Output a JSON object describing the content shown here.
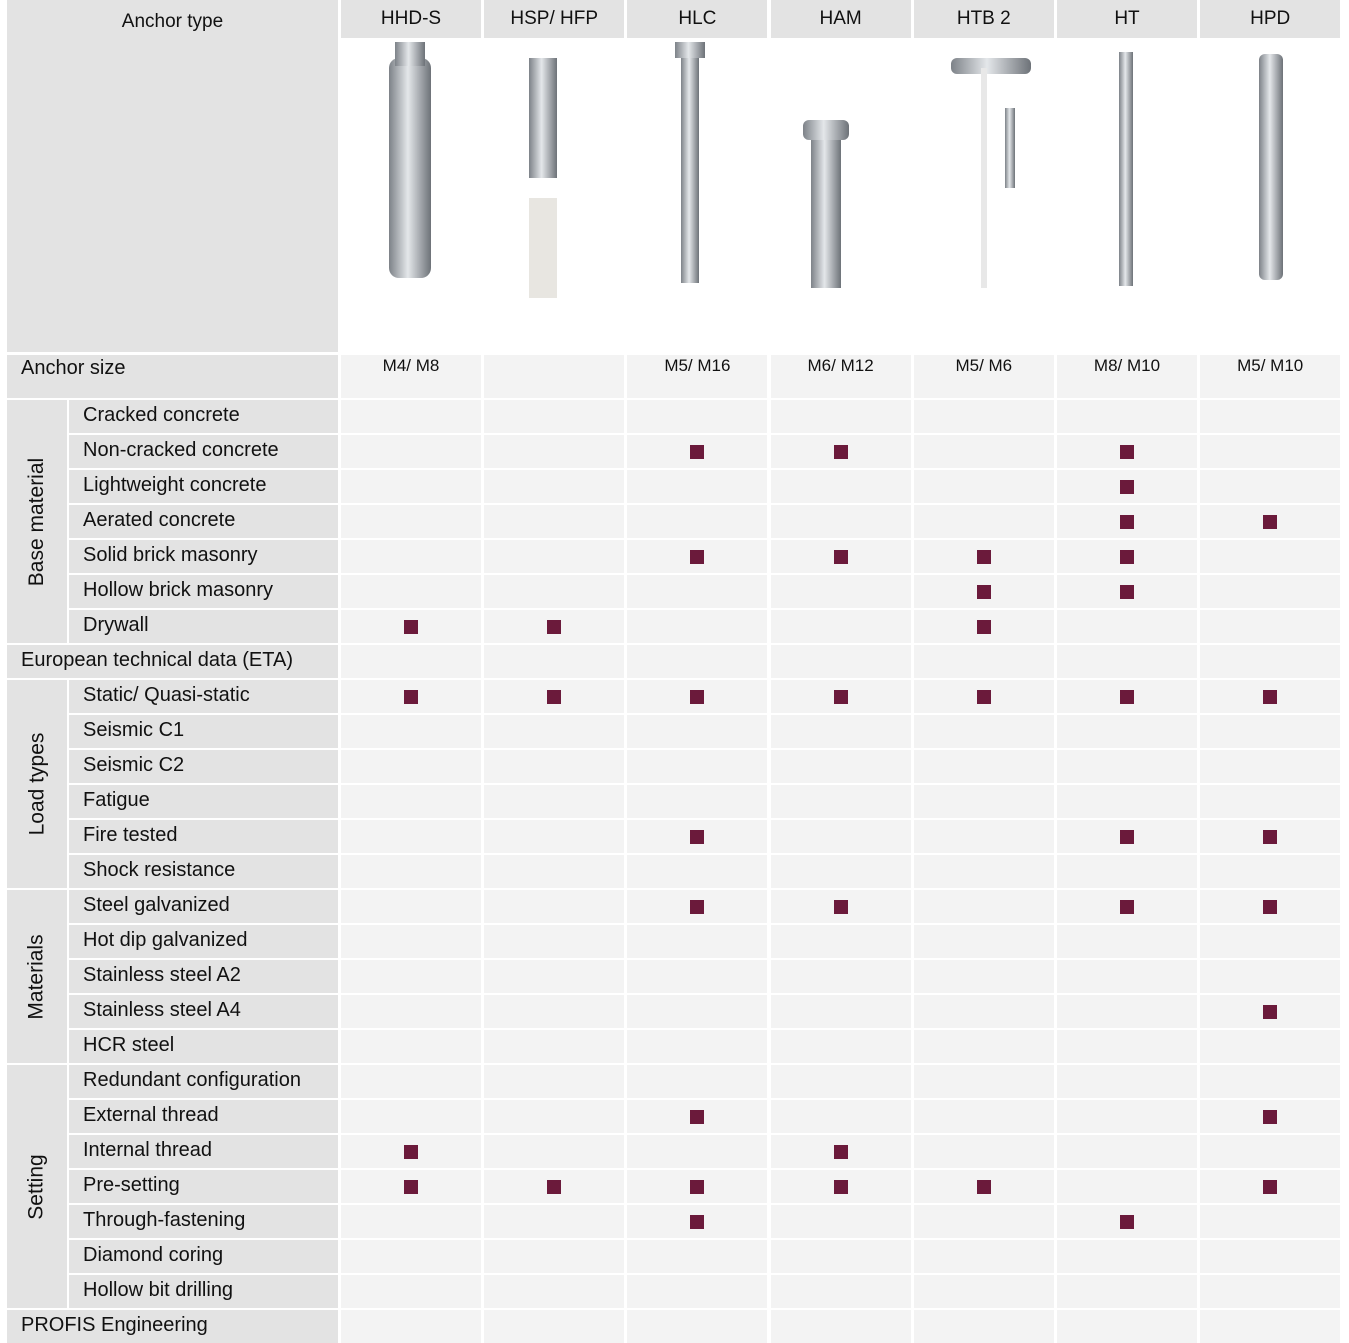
{
  "header": {
    "corner": "Anchor type",
    "size_label": "Anchor size"
  },
  "columns": [
    "HHD-S",
    "HSP/ HFP",
    "HLC",
    "HAM",
    "HTB 2",
    "HT",
    "HPD"
  ],
  "sizes": [
    "M4/ M8",
    null,
    "M5/ M16",
    "M6/ M12",
    "M5/ M6",
    "M8/ M10",
    "M5/ M10"
  ],
  "sections": [
    {
      "group": "Base material",
      "rows": [
        {
          "label": "Cracked concrete",
          "marks": [
            0,
            0,
            0,
            0,
            0,
            0,
            0
          ]
        },
        {
          "label": "Non-cracked concrete",
          "marks": [
            0,
            0,
            1,
            1,
            0,
            1,
            0
          ]
        },
        {
          "label": "Lightweight concrete",
          "marks": [
            0,
            0,
            0,
            0,
            0,
            1,
            0
          ]
        },
        {
          "label": "Aerated concrete",
          "marks": [
            0,
            0,
            0,
            0,
            0,
            1,
            1
          ]
        },
        {
          "label": "Solid brick masonry",
          "marks": [
            0,
            0,
            1,
            1,
            1,
            1,
            0
          ]
        },
        {
          "label": "Hollow brick masonry",
          "marks": [
            0,
            0,
            0,
            0,
            1,
            1,
            0
          ]
        },
        {
          "label": "Drywall",
          "marks": [
            1,
            1,
            0,
            0,
            1,
            0,
            0
          ]
        }
      ]
    },
    {
      "label": "European technical data (ETA)",
      "marks": [
        0,
        0,
        0,
        0,
        0,
        0,
        0
      ]
    },
    {
      "group": "Load types",
      "rows": [
        {
          "label": "Static/ Quasi-static",
          "marks": [
            1,
            1,
            1,
            1,
            1,
            1,
            1
          ]
        },
        {
          "label": "Seismic C1",
          "marks": [
            0,
            0,
            0,
            0,
            0,
            0,
            0
          ]
        },
        {
          "label": "Seismic C2",
          "marks": [
            0,
            0,
            0,
            0,
            0,
            0,
            0
          ]
        },
        {
          "label": "Fatigue",
          "marks": [
            0,
            0,
            0,
            0,
            0,
            0,
            0
          ]
        },
        {
          "label": "Fire tested",
          "marks": [
            0,
            0,
            1,
            0,
            0,
            1,
            1
          ]
        },
        {
          "label": "Shock resistance",
          "marks": [
            0,
            0,
            0,
            0,
            0,
            0,
            0
          ]
        }
      ]
    },
    {
      "group": "Materials",
      "rows": [
        {
          "label": "Steel galvanized",
          "marks": [
            0,
            0,
            1,
            1,
            0,
            1,
            1
          ]
        },
        {
          "label": "Hot dip galvanized",
          "marks": [
            0,
            0,
            0,
            0,
            0,
            0,
            0
          ]
        },
        {
          "label": "Stainless steel A2",
          "marks": [
            0,
            0,
            0,
            0,
            0,
            0,
            0
          ]
        },
        {
          "label": "Stainless steel A4",
          "marks": [
            0,
            0,
            0,
            0,
            0,
            0,
            1
          ]
        },
        {
          "label": "HCR steel",
          "marks": [
            0,
            0,
            0,
            0,
            0,
            0,
            0
          ]
        }
      ]
    },
    {
      "group": "Setting",
      "rows": [
        {
          "label": "Redundant configuration",
          "marks": [
            0,
            0,
            0,
            0,
            0,
            0,
            0
          ]
        },
        {
          "label": "External thread",
          "marks": [
            0,
            0,
            1,
            0,
            0,
            0,
            1
          ]
        },
        {
          "label": "Internal thread",
          "marks": [
            1,
            0,
            0,
            1,
            0,
            0,
            0
          ]
        },
        {
          "label": "Pre-setting",
          "marks": [
            1,
            1,
            1,
            1,
            1,
            0,
            1
          ]
        },
        {
          "label": "Through-fastening",
          "marks": [
            0,
            0,
            1,
            0,
            0,
            1,
            0
          ]
        },
        {
          "label": "Diamond coring",
          "marks": [
            0,
            0,
            0,
            0,
            0,
            0,
            0
          ]
        },
        {
          "label": "Hollow bit drilling",
          "marks": [
            0,
            0,
            0,
            0,
            0,
            0,
            0
          ]
        }
      ]
    },
    {
      "label": "PROFIS Engineering",
      "marks": [
        0,
        0,
        0,
        0,
        0,
        0,
        0
      ]
    }
  ]
}
